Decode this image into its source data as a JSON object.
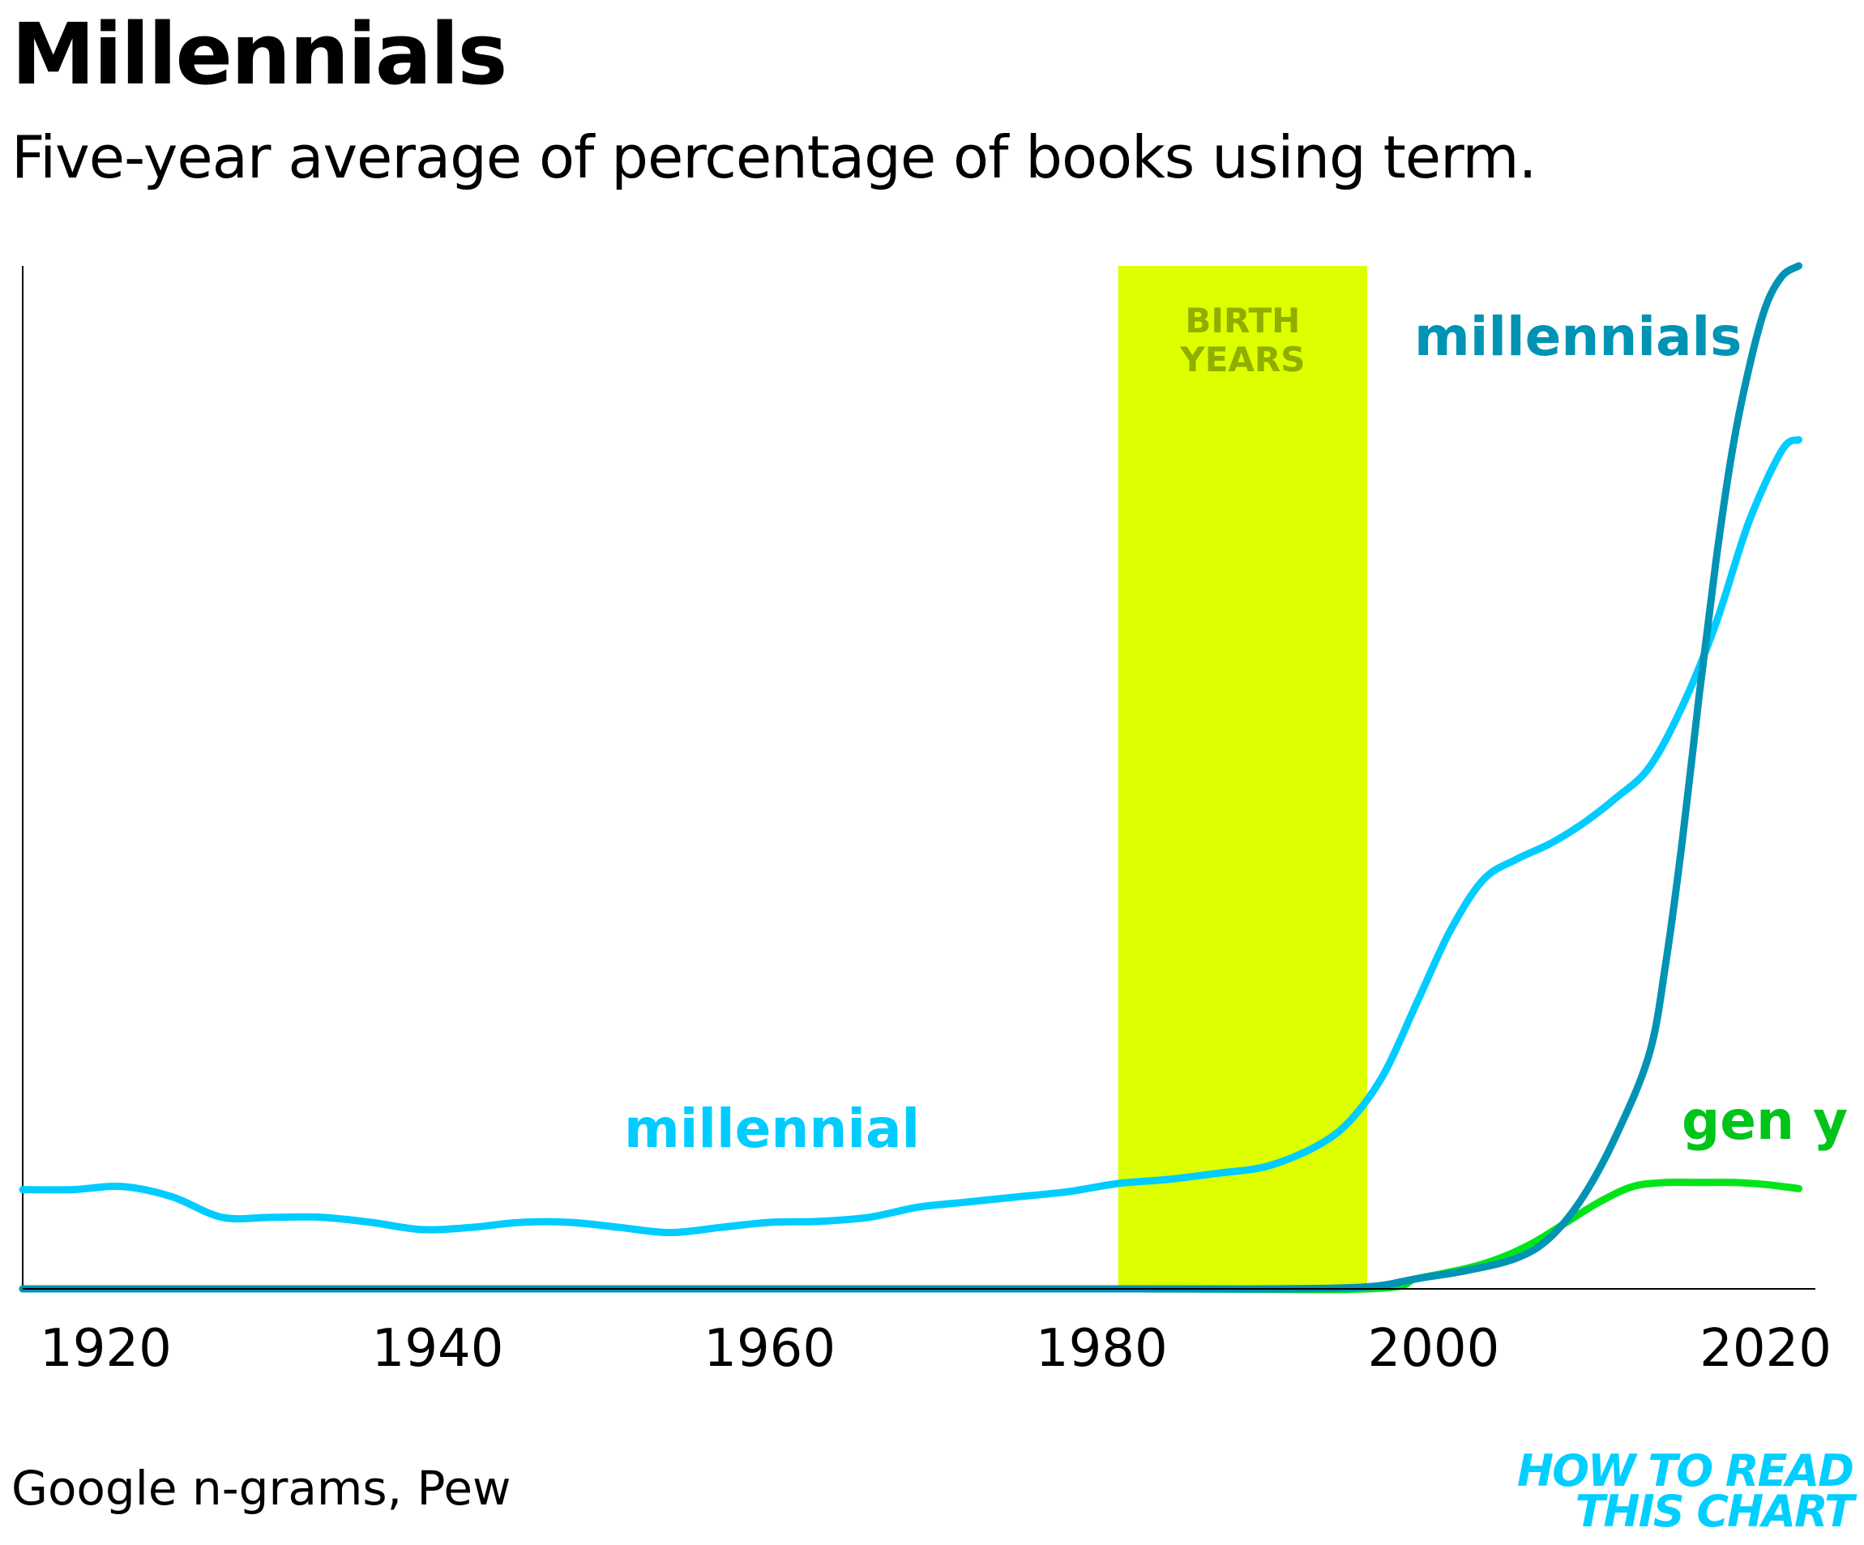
{
  "chart_data": {
    "type": "line",
    "title": "Millennials",
    "subtitle": "Five-year average of percentage of books using term.",
    "xlim": [
      1915,
      2023
    ],
    "ylim": [
      0,
      1
    ],
    "x_ticks": [
      1920,
      1940,
      1960,
      1980,
      2000,
      2020
    ],
    "grid": false,
    "highlight_band": {
      "label_line1": "BIRTH",
      "label_line2": "YEARS",
      "x_start": 1981,
      "x_end": 1996,
      "color": "#ddff00"
    },
    "series": [
      {
        "name": "millennial",
        "color": "#00ccff",
        "x": [
          1915,
          1918,
          1921,
          1924,
          1927,
          1930,
          1933,
          1936,
          1939,
          1942,
          1945,
          1948,
          1951,
          1954,
          1957,
          1960,
          1963,
          1966,
          1969,
          1972,
          1975,
          1978,
          1981,
          1984,
          1987,
          1990,
          1993,
          1995,
          1997,
          1999,
          2001,
          2003,
          2005,
          2007,
          2009,
          2011,
          2013,
          2015,
          2017,
          2019,
          2021,
          2022
        ],
        "y": [
          0.097,
          0.097,
          0.1,
          0.09,
          0.07,
          0.07,
          0.07,
          0.065,
          0.058,
          0.06,
          0.065,
          0.065,
          0.06,
          0.055,
          0.06,
          0.065,
          0.066,
          0.07,
          0.08,
          0.085,
          0.09,
          0.095,
          0.103,
          0.107,
          0.113,
          0.12,
          0.14,
          0.165,
          0.21,
          0.28,
          0.35,
          0.4,
          0.42,
          0.435,
          0.455,
          0.48,
          0.51,
          0.57,
          0.65,
          0.75,
          0.82,
          0.83
        ]
      },
      {
        "name": "millennials",
        "color": "#0093b4",
        "x": [
          1915,
          1980,
          1990,
          1996,
          1999,
          2002,
          2005,
          2007,
          2009,
          2011,
          2013,
          2014,
          2015,
          2016,
          2017,
          2018,
          2019,
          2020,
          2021,
          2022
        ],
        "y": [
          0,
          0,
          0,
          0.002,
          0.01,
          0.018,
          0.03,
          0.05,
          0.09,
          0.15,
          0.23,
          0.32,
          0.44,
          0.58,
          0.71,
          0.82,
          0.9,
          0.96,
          0.99,
          1.0
        ]
      },
      {
        "name": "gen y",
        "color": "#00e41a",
        "x": [
          1915,
          1980,
          1996,
          1999,
          2002,
          2004,
          2006,
          2008,
          2010,
          2012,
          2014,
          2016,
          2018,
          2020,
          2022
        ],
        "y": [
          0,
          0,
          0,
          0.01,
          0.02,
          0.03,
          0.045,
          0.065,
          0.085,
          0.1,
          0.104,
          0.104,
          0.104,
          0.102,
          0.098
        ]
      }
    ]
  },
  "footer": {
    "source": "Google n-grams, Pew",
    "logo_line1": "HOW TO READ",
    "logo_line2": "THIS CHART"
  }
}
